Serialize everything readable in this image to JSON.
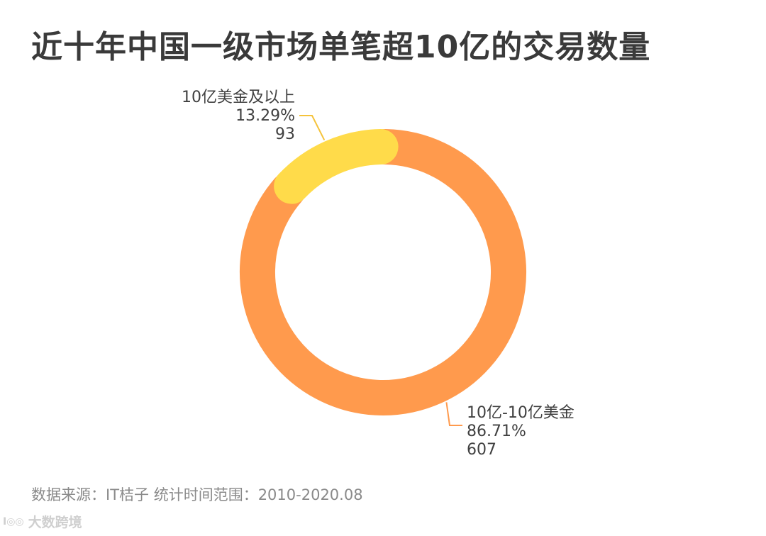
{
  "title": "近十年中国一级市场单笔超10亿的交易数量",
  "source": "数据来源：IT桔子 统计时间范围：2010-2020.08",
  "watermark": {
    "mark": "I◎◎",
    "text": "大数跨境"
  },
  "chart_data": {
    "type": "pie",
    "donut": true,
    "title": "近十年中国一级市场单笔超10亿的交易数量",
    "slices": [
      {
        "label": "10亿-10亿美金",
        "percent": "86.71%",
        "value": 607,
        "color": "#FF9A4D"
      },
      {
        "label": "10亿美金及以上",
        "percent": "13.29%",
        "value": 93,
        "color": "#FFDB4A"
      }
    ],
    "leader_line_color": "#F5C33B"
  }
}
